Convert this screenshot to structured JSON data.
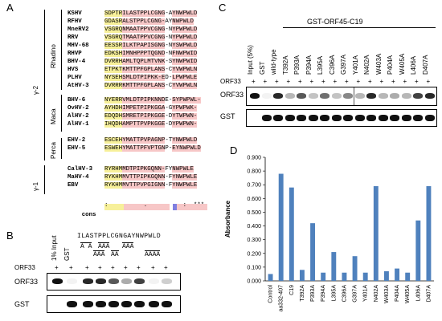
{
  "panel_letters": {
    "a": "A",
    "b": "B",
    "c": "C",
    "d": "D"
  },
  "panelA": {
    "groups": {
      "gamma2": "γ-2",
      "rhadino": "Rhadino",
      "maca": "Maca",
      "perca": "Perca",
      "gamma1": "γ-1"
    },
    "rows": [
      {
        "name": "KSHV",
        "seq": "SDPTRILASTPPLCGNG-AYNWPWLD"
      },
      {
        "name": "RFHV",
        "seq": "GDASRALSTPPLCGNG-AYNWPWLD"
      },
      {
        "name": "MneRV2",
        "seq": "VSGRQNMAATPPVCGNG-NYPWPWLD"
      },
      {
        "name": "RRV",
        "seq": "VSGRQTMAATPPVCGNG-NYPWPWLD"
      },
      {
        "name": "MHV-68",
        "seq": "EESSRILKTPAPISGNG-NYSWPWLD"
      },
      {
        "name": "RHVP",
        "seq": "EDKSHIMNHPPPTQGND-NFNWPWID"
      },
      {
        "name": "BHV-4",
        "seq": "DVRRHAMLTQPLMTVNK-SYNWPWID"
      },
      {
        "name": "HVS",
        "seq": "ETPKTKMTTPFGPLANS-CYVWPWLN"
      },
      {
        "name": "PLHV",
        "seq": "NYSEHSMLDTPIPKK-ED-LPWPWLE"
      },
      {
        "name": "AtHV-3",
        "seq": "DVRRRKMTTPFGPLANS-CYVWPWLN"
      },
      {
        "name": "BHV-6",
        "seq": "NYERRVMLDTPIPKNNDE-SYPWPWL-"
      },
      {
        "name": "OvHV-2",
        "seq": "AYHDHIMPETPIPKGGA-GYPWPWK-"
      },
      {
        "name": "AlHV-2",
        "seq": "EDQDHSMRETPIPKGGE-DYTWPWN-"
      },
      {
        "name": "AlHV-1",
        "seq": "IHQDHAMPTTPVPKGGE-DYPWPWN-"
      },
      {
        "name": "EHV-2",
        "seq": "ESCEHYMATTPVPAGNP-TYNWPWLD"
      },
      {
        "name": "EHV-5",
        "seq": "ESWEHYMATTPFVPTGNP-EYNWPWLD"
      },
      {
        "name": "CalHV-3",
        "seq": "RYRHMMDTPIPKGQNN-FYNWPWLE"
      },
      {
        "name": "MaHV-4",
        "seq": "RYKHMMVTTPIPKGQNN-FYNWPWLE"
      },
      {
        "name": "EBV",
        "seq": "RYKHMMVTTPVPGIGNN-FYNWPWLE"
      }
    ],
    "cons_label": "cons",
    "cons_marks": ":          .          :  ***"
  },
  "panelB": {
    "input_label": "1% Input",
    "gst_label": "GST",
    "peptide": "ILASTPPLCGNGAYNWPWLD",
    "mut_labels": [
      "A  A",
      "AAA",
      "AAA",
      "AA",
      "AAA",
      "AAAA"
    ],
    "orf33_row_label": "ORF33",
    "orf33_signs": [
      "+",
      "+",
      "+",
      "+",
      "+",
      "+",
      "+",
      "+",
      "+"
    ],
    "blot_labels": {
      "orf33": "ORF33",
      "gst": "GST"
    },
    "orf33_intensity": [
      1.0,
      0.05,
      0.9,
      0.9,
      0.7,
      0.35,
      0.8,
      0.05,
      0.2
    ],
    "gst_intensity": [
      0,
      1,
      1,
      1,
      1,
      1,
      1,
      1,
      1
    ]
  },
  "panelC": {
    "header": "GST-ORF45-C19",
    "lanes": [
      "Input (5%)",
      "GST",
      "wild-type",
      "T392A",
      "P393A",
      "P394A",
      "L395A",
      "C396A",
      "G397A",
      "Y401A",
      "N402A",
      "W403A",
      "P404A",
      "W405A",
      "L406A",
      "D407A"
    ],
    "orf33_row_label": "ORF33",
    "orf33_signs": [
      "+",
      "+",
      "+",
      "+",
      "+",
      "+",
      "+",
      "+",
      "+",
      "+",
      "+",
      "+",
      "+",
      "+",
      "+",
      "+"
    ],
    "blot_labels": {
      "orf33": "ORF33",
      "gst": "GST"
    },
    "orf33_intensity": [
      1.0,
      0.05,
      0.9,
      0.3,
      0.7,
      0.25,
      0.6,
      0.25,
      0.5,
      0.3,
      0.9,
      0.3,
      0.35,
      0.3,
      0.8,
      0.9
    ]
  },
  "chart_data": {
    "type": "bar",
    "title": "",
    "xlabel": "",
    "ylabel": "Absorbance",
    "ylim": [
      0,
      0.9
    ],
    "yticks": [
      "0.000",
      "0.100",
      "0.200",
      "0.300",
      "0.400",
      "0.500",
      "0.600",
      "0.700",
      "0.800",
      "0.900"
    ],
    "categories": [
      "Control",
      "aa332-407",
      "C19",
      "T392A",
      "P393A",
      "P394A",
      "L395A",
      "C396A",
      "G397A",
      "Y401A",
      "N402A",
      "W403A",
      "P404A",
      "W405A",
      "L406A",
      "D407A"
    ],
    "values": [
      0.05,
      0.78,
      0.68,
      0.08,
      0.42,
      0.06,
      0.21,
      0.06,
      0.18,
      0.06,
      0.69,
      0.07,
      0.09,
      0.06,
      0.44,
      0.69
    ],
    "bar_color": "#4f81bd"
  }
}
